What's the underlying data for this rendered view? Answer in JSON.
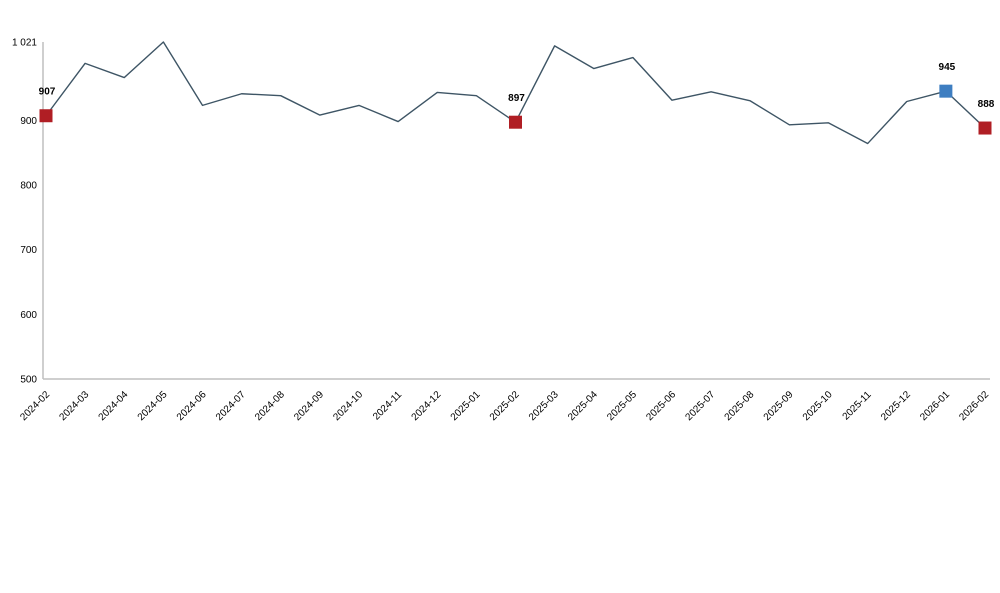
{
  "chart_data": {
    "type": "line",
    "title": "",
    "xlabel": "",
    "ylabel": "",
    "categories": [
      "2024-02",
      "2024-03",
      "2024-04",
      "2024-05",
      "2024-06",
      "2024-07",
      "2024-08",
      "2024-09",
      "2024-10",
      "2024-11",
      "2024-12",
      "2025-01",
      "2025-02",
      "2025-03",
      "2025-04",
      "2025-05",
      "2025-06",
      "2025-07",
      "2025-08",
      "2025-09",
      "2025-10",
      "2025-11",
      "2025-12",
      "2026-01",
      "2026-02"
    ],
    "values": [
      907,
      988,
      966,
      1021,
      923,
      941,
      938,
      908,
      923,
      898,
      943,
      938,
      897,
      1015,
      980,
      997,
      931,
      944,
      930,
      893,
      896,
      864,
      929,
      945,
      888
    ],
    "ylim": [
      500,
      1021
    ],
    "y_ticks": [
      {
        "value": 1021,
        "label": "1 021"
      },
      {
        "value": 900,
        "label": "900"
      },
      {
        "value": 800,
        "label": "800"
      },
      {
        "value": 700,
        "label": "700"
      },
      {
        "value": 600,
        "label": "600"
      },
      {
        "value": 500,
        "label": "500"
      }
    ],
    "labeled_points": [
      {
        "index": 0,
        "category": "2024-02",
        "value": 907,
        "label": "907",
        "marker_color": "#b01e24"
      },
      {
        "index": 12,
        "category": "2025-02",
        "value": 897,
        "label": "897",
        "marker_color": "#b01e24"
      },
      {
        "index": 23,
        "category": "2026-01",
        "value": 945,
        "label": "945",
        "marker_color": "#3e7ec1"
      },
      {
        "index": 24,
        "category": "2026-02",
        "value": 888,
        "label": "888",
        "marker_color": "#b01e24"
      }
    ],
    "line_color": "#3e5565",
    "axis_color": "#bfbfbf",
    "text_color": "#000000",
    "grid": false,
    "legend": false,
    "x_tick_rotation": -45
  }
}
